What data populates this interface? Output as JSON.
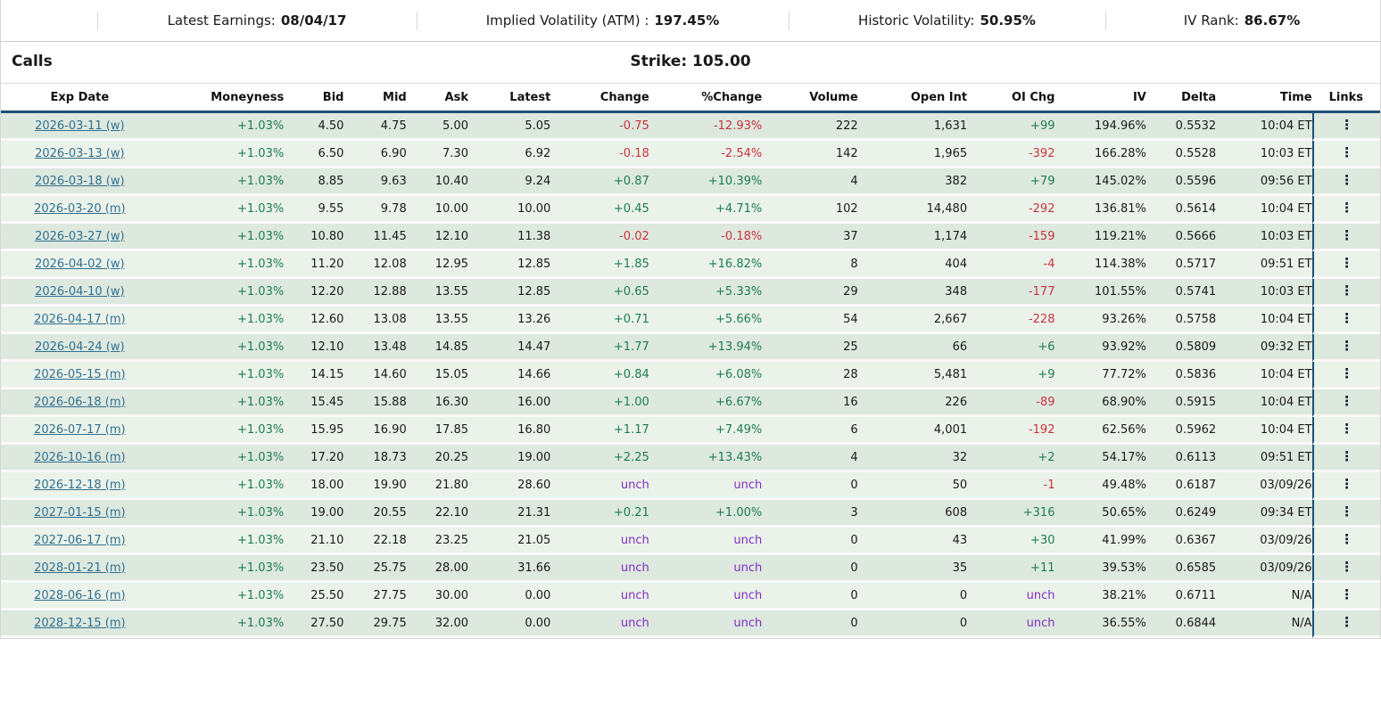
{
  "top_bar": {
    "stats": [
      {
        "label": "Latest Earnings:",
        "value": "08/04/17"
      },
      {
        "label": "Implied Volatility (ATM) :",
        "value": "197.45%"
      },
      {
        "label": "Historic Volatility:",
        "value": "50.95%"
      },
      {
        "label": "IV Rank:",
        "value": "86.67%"
      }
    ]
  },
  "section": {
    "calls_label": "Calls",
    "strike_label": "Strike: 105.00"
  },
  "table": {
    "columns": [
      "Exp Date",
      "Moneyness",
      "Bid",
      "Mid",
      "Ask",
      "Latest",
      "Change",
      "%Change",
      "Volume",
      "Open Int",
      "OI Chg",
      "IV",
      "Delta",
      "Time",
      "Links"
    ],
    "links_icon": "⋮",
    "rows": [
      [
        "2026-03-11 (w)",
        "+1.03%",
        "4.50",
        "4.75",
        "5.00",
        "5.05",
        "-0.75",
        "-12.93%",
        "222",
        "1,631",
        "+99",
        "194.96%",
        "0.5532",
        "10:04 ET"
      ],
      [
        "2026-03-13 (w)",
        "+1.03%",
        "6.50",
        "6.90",
        "7.30",
        "6.92",
        "-0.18",
        "-2.54%",
        "142",
        "1,965",
        "-392",
        "166.28%",
        "0.5528",
        "10:03 ET"
      ],
      [
        "2026-03-18 (w)",
        "+1.03%",
        "8.85",
        "9.63",
        "10.40",
        "9.24",
        "+0.87",
        "+10.39%",
        "4",
        "382",
        "+79",
        "145.02%",
        "0.5596",
        "09:56 ET"
      ],
      [
        "2026-03-20 (m)",
        "+1.03%",
        "9.55",
        "9.78",
        "10.00",
        "10.00",
        "+0.45",
        "+4.71%",
        "102",
        "14,480",
        "-292",
        "136.81%",
        "0.5614",
        "10:04 ET"
      ],
      [
        "2026-03-27 (w)",
        "+1.03%",
        "10.80",
        "11.45",
        "12.10",
        "11.38",
        "-0.02",
        "-0.18%",
        "37",
        "1,174",
        "-159",
        "119.21%",
        "0.5666",
        "10:03 ET"
      ],
      [
        "2026-04-02 (w)",
        "+1.03%",
        "11.20",
        "12.08",
        "12.95",
        "12.85",
        "+1.85",
        "+16.82%",
        "8",
        "404",
        "-4",
        "114.38%",
        "0.5717",
        "09:51 ET"
      ],
      [
        "2026-04-10 (w)",
        "+1.03%",
        "12.20",
        "12.88",
        "13.55",
        "12.85",
        "+0.65",
        "+5.33%",
        "29",
        "348",
        "-177",
        "101.55%",
        "0.5741",
        "10:03 ET"
      ],
      [
        "2026-04-17 (m)",
        "+1.03%",
        "12.60",
        "13.08",
        "13.55",
        "13.26",
        "+0.71",
        "+5.66%",
        "54",
        "2,667",
        "-228",
        "93.26%",
        "0.5758",
        "10:04 ET"
      ],
      [
        "2026-04-24 (w)",
        "+1.03%",
        "12.10",
        "13.48",
        "14.85",
        "14.47",
        "+1.77",
        "+13.94%",
        "25",
        "66",
        "+6",
        "93.92%",
        "0.5809",
        "09:32 ET"
      ],
      [
        "2026-05-15 (m)",
        "+1.03%",
        "14.15",
        "14.60",
        "15.05",
        "14.66",
        "+0.84",
        "+6.08%",
        "28",
        "5,481",
        "+9",
        "77.72%",
        "0.5836",
        "10:04 ET"
      ],
      [
        "2026-06-18 (m)",
        "+1.03%",
        "15.45",
        "15.88",
        "16.30",
        "16.00",
        "+1.00",
        "+6.67%",
        "16",
        "226",
        "-89",
        "68.90%",
        "0.5915",
        "10:04 ET"
      ],
      [
        "2026-07-17 (m)",
        "+1.03%",
        "15.95",
        "16.90",
        "17.85",
        "16.80",
        "+1.17",
        "+7.49%",
        "6",
        "4,001",
        "-192",
        "62.56%",
        "0.5962",
        "10:04 ET"
      ],
      [
        "2026-10-16 (m)",
        "+1.03%",
        "17.20",
        "18.73",
        "20.25",
        "19.00",
        "+2.25",
        "+13.43%",
        "4",
        "32",
        "+2",
        "54.17%",
        "0.6113",
        "09:51 ET"
      ],
      [
        "2026-12-18 (m)",
        "+1.03%",
        "18.00",
        "19.90",
        "21.80",
        "28.60",
        "unch",
        "unch",
        "0",
        "50",
        "-1",
        "49.48%",
        "0.6187",
        "03/09/26"
      ],
      [
        "2027-01-15 (m)",
        "+1.03%",
        "19.00",
        "20.55",
        "22.10",
        "21.31",
        "+0.21",
        "+1.00%",
        "3",
        "608",
        "+316",
        "50.65%",
        "0.6249",
        "09:34 ET"
      ],
      [
        "2027-06-17 (m)",
        "+1.03%",
        "21.10",
        "22.18",
        "23.25",
        "21.05",
        "unch",
        "unch",
        "0",
        "43",
        "+30",
        "41.99%",
        "0.6367",
        "03/09/26"
      ],
      [
        "2028-01-21 (m)",
        "+1.03%",
        "23.50",
        "25.75",
        "28.00",
        "31.66",
        "unch",
        "unch",
        "0",
        "35",
        "+11",
        "39.53%",
        "0.6585",
        "03/09/26"
      ],
      [
        "2028-06-16 (m)",
        "+1.03%",
        "25.50",
        "27.75",
        "30.00",
        "0.00",
        "unch",
        "unch",
        "0",
        "0",
        "unch",
        "38.21%",
        "0.6711",
        "N/A"
      ],
      [
        "2028-12-15 (m)",
        "+1.03%",
        "27.50",
        "29.75",
        "32.00",
        "0.00",
        "unch",
        "unch",
        "0",
        "0",
        "unch",
        "36.55%",
        "0.6844",
        "N/A"
      ]
    ]
  },
  "colors": {
    "positive_green": "#1d7d4f",
    "negative_red": "#cb333b",
    "unchanged_purple": "#7f2dbf",
    "link_blue": "#31708f",
    "header_rule_navy": "#1c4f76",
    "row_stripe_dark": "#dde8df",
    "row_stripe_light": "#eaf2ea"
  }
}
